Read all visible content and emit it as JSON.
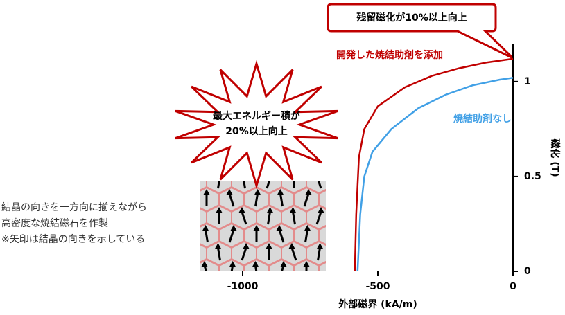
{
  "chart_data": {
    "type": "line",
    "xlabel": "外部磁界 (kA/m)",
    "ylabel": "磁化 (T)",
    "xlim": [
      -1200,
      0
    ],
    "ylim": [
      0,
      1.2
    ],
    "xticks": [
      -1000,
      -500,
      0
    ],
    "yticks": [
      0,
      0.5,
      1
    ],
    "series": [
      {
        "name": "開発した焼結助剤を添加",
        "color": "#c00000",
        "x": [
          -585,
          -580,
          -570,
          -550,
          -500,
          -400,
          -300,
          -200,
          -100,
          0
        ],
        "values": [
          0,
          0.3,
          0.6,
          0.75,
          0.87,
          0.97,
          1.03,
          1.07,
          1.1,
          1.12
        ]
      },
      {
        "name": "焼結助剤なし",
        "color": "#41a0e6",
        "x": [
          -575,
          -565,
          -550,
          -520,
          -450,
          -350,
          -250,
          -150,
          -50,
          0
        ],
        "values": [
          0,
          0.3,
          0.5,
          0.63,
          0.75,
          0.86,
          0.93,
          0.98,
          1.01,
          1.02
        ]
      }
    ],
    "annotations": {
      "callout": "残留磁化が10%以上向上",
      "burst": [
        "最大エネルギー積が",
        "20%以上向上"
      ],
      "side_note": [
        "結晶の向きを一方向に揃えながら",
        "高密度な焼結磁石を作製",
        "※矢印は結晶の向きを示している"
      ]
    }
  }
}
